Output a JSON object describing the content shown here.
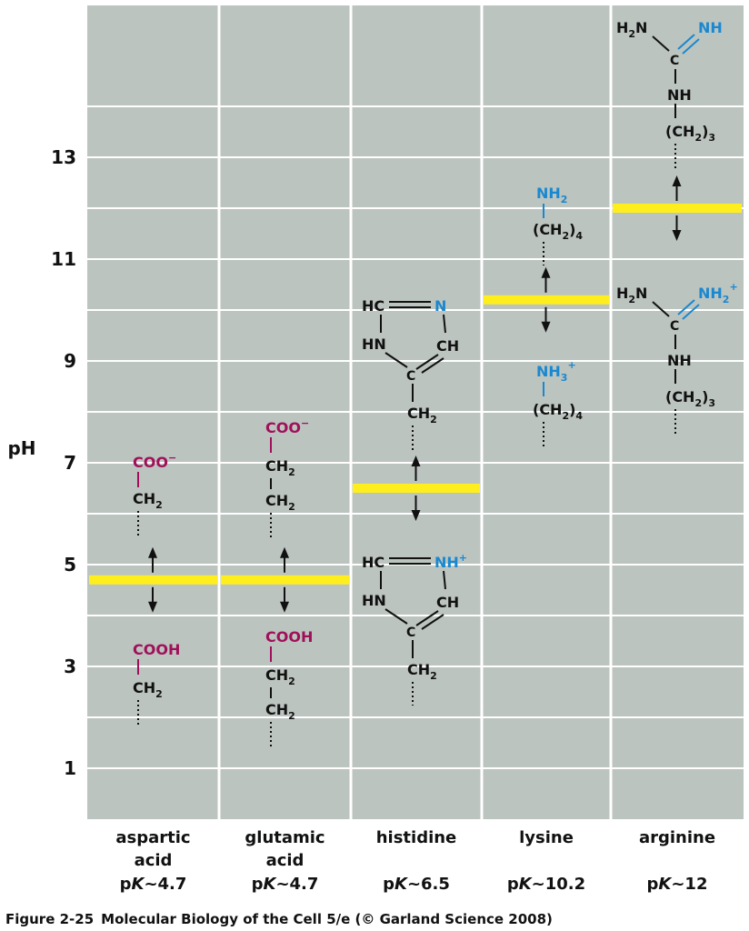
{
  "axis": {
    "ylabel": "pH",
    "ticks": [
      1,
      3,
      5,
      7,
      9,
      11,
      13
    ],
    "ylim": [
      0,
      14
    ]
  },
  "colors": {
    "panel": "#bcc4bf",
    "grid": "#ffffff",
    "pk_line": "#ffee1e",
    "acid_group": "#a0105a",
    "basic_group": "#1a88d0"
  },
  "columns": [
    {
      "name_lines": [
        "aspartic",
        "acid"
      ],
      "pk_prefix": "p",
      "pk_italic": "K",
      "pk_value": "~4.7",
      "pk": 4.7,
      "upper": {
        "head": "COO",
        "head_charge": "−",
        "body": [
          [
            "CH",
            "2"
          ]
        ]
      },
      "lower": {
        "head": "COOH",
        "head_charge": "",
        "body": [
          [
            "CH",
            "2"
          ]
        ]
      }
    },
    {
      "name_lines": [
        "glutamic",
        "acid"
      ],
      "pk_prefix": "p",
      "pk_italic": "K",
      "pk_value": "~4.7",
      "pk": 4.7,
      "upper": {
        "head": "COO",
        "head_charge": "−",
        "body": [
          [
            "CH",
            "2"
          ],
          [
            "CH",
            "2"
          ]
        ]
      },
      "lower": {
        "head": "COOH",
        "head_charge": "",
        "body": [
          [
            "CH",
            "2"
          ],
          [
            "CH",
            "2"
          ]
        ]
      }
    },
    {
      "name_lines": [
        "histidine"
      ],
      "pk_prefix": "p",
      "pk_italic": "K",
      "pk_value": "~6.5",
      "pk": 6.5,
      "upper": {
        "hc": "HC",
        "n_top": "N",
        "n_top_charge": "",
        "hn": "HN",
        "ch": "CH",
        "c": "C",
        "ch2": [
          "CH",
          "2"
        ]
      },
      "lower": {
        "hc": "HC",
        "n_top": "NH",
        "n_top_charge": "+",
        "hn": "HN",
        "ch": "CH",
        "c": "C",
        "ch2": [
          "CH",
          "2"
        ]
      }
    },
    {
      "name_lines": [
        "lysine"
      ],
      "pk_prefix": "p",
      "pk_italic": "K",
      "pk_value": "~10.2",
      "pk": 10.2,
      "upper": {
        "amine": "NH",
        "amine_sub": "2",
        "amine_charge": "",
        "chain": "(CH",
        "chain_sub": "2",
        "chain_tail": ")",
        "chain_n": "4"
      },
      "lower": {
        "amine": "NH",
        "amine_sub": "3",
        "amine_charge": "+",
        "chain": "(CH",
        "chain_sub": "2",
        "chain_tail": ")",
        "chain_n": "4"
      }
    },
    {
      "name_lines": [
        "arginine"
      ],
      "pk_prefix": "p",
      "pk_italic": "K",
      "pk_value": "~12",
      "pk": 12,
      "upper": {
        "h2n": "H",
        "h2n_sub": "2",
        "h2n_tail": "N",
        "imine": "NH",
        "imine_sub": "",
        "imine_charge": "",
        "c": "C",
        "nh": "NH",
        "chain": "(CH",
        "chain_sub": "2",
        "chain_tail": ")",
        "chain_n": "3"
      },
      "lower": {
        "h2n": "H",
        "h2n_sub": "2",
        "h2n_tail": "N",
        "imine": "NH",
        "imine_sub": "2",
        "imine_charge": "+",
        "c": "C",
        "nh": "NH",
        "chain": "(CH",
        "chain_sub": "2",
        "chain_tail": ")",
        "chain_n": "3"
      }
    }
  ],
  "caption": {
    "figure": "Figure 2-25",
    "text": "Molecular Biology of the Cell 5/e (© Garland Science 2008)"
  }
}
